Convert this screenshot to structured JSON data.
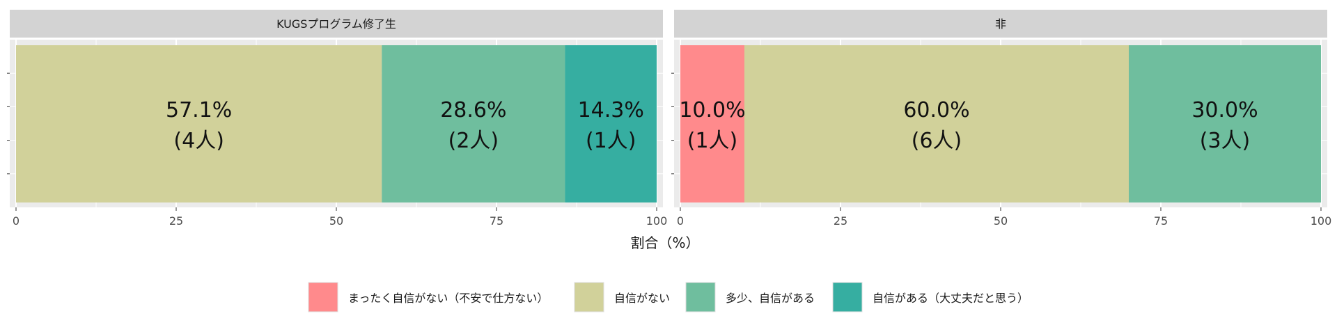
{
  "chart_data": {
    "type": "bar",
    "orientation": "horizontal-stacked-100",
    "facets": [
      {
        "title": "KUGSプログラム修了生",
        "segments": [
          {
            "category": "自信がない",
            "value": 57.1,
            "label": "57.1%",
            "count_label": "(4人)"
          },
          {
            "category": "多少、自信がある",
            "value": 28.6,
            "label": "28.6%",
            "count_label": "(2人)"
          },
          {
            "category": "自信がある（大丈夫だと思う）",
            "value": 14.3,
            "label": "14.3%",
            "count_label": "(1人)"
          }
        ]
      },
      {
        "title": "非",
        "segments": [
          {
            "category": "まったく自信がない（不安で仕方ない）",
            "value": 10.0,
            "label": "10.0%",
            "count_label": "(1人)"
          },
          {
            "category": "自信がない",
            "value": 60.0,
            "label": "60.0%",
            "count_label": "(6人)"
          },
          {
            "category": "多少、自信がある",
            "value": 30.0,
            "label": "30.0%",
            "count_label": "(3人)"
          }
        ]
      }
    ],
    "xlabel": "割合（%）",
    "xlim": [
      0,
      100
    ],
    "xticks": [
      0,
      25,
      50,
      75,
      100
    ],
    "grid": true,
    "legend_position": "bottom",
    "legend": [
      {
        "category": "まったく自信がない（不安で仕方ない）",
        "color": "#FF8A8C"
      },
      {
        "category": "自信がない",
        "color": "#D1D19A"
      },
      {
        "category": "多少、自信がある",
        "color": "#6FBE9E"
      },
      {
        "category": "自信がある（大丈夫だと思う）",
        "color": "#36AEA1"
      }
    ]
  }
}
